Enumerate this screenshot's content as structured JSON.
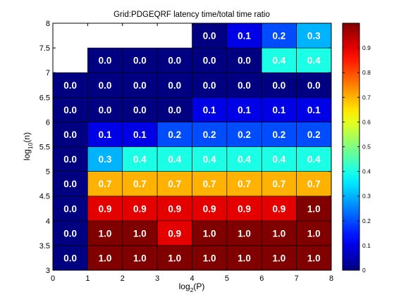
{
  "chart_data": {
    "type": "heatmap",
    "title": "Grid:PDGEQRF latency time/total time ratio",
    "xlabel": {
      "base": "log",
      "sub": "2",
      "rest": "(P)"
    },
    "ylabel": {
      "base": "log",
      "sub": "10",
      "rest": "(n)"
    },
    "xlim": [
      0,
      8
    ],
    "ylim": [
      3,
      8
    ],
    "x_ticks": [
      "0",
      "1",
      "2",
      "3",
      "4",
      "5",
      "6",
      "7",
      "8"
    ],
    "y_ticks": [
      "3",
      "3.5",
      "4",
      "4.5",
      "5",
      "5.5",
      "6",
      "6.5",
      "7",
      "7.5",
      "8"
    ],
    "x_centers": [
      0.5,
      1.5,
      2.5,
      3.5,
      4.5,
      5.5,
      6.5,
      7.5
    ],
    "y_centers": [
      3.25,
      3.75,
      4.25,
      4.75,
      5.25,
      5.75,
      6.25,
      6.75,
      7.25,
      7.75
    ],
    "values": [
      [
        0.0,
        1.0,
        1.0,
        1.0,
        1.0,
        1.0,
        1.0,
        1.0
      ],
      [
        0.0,
        1.0,
        1.0,
        0.9,
        1.0,
        1.0,
        1.0,
        1.0
      ],
      [
        0.0,
        0.9,
        0.9,
        0.9,
        0.9,
        0.9,
        0.9,
        1.0
      ],
      [
        0.0,
        0.7,
        0.7,
        0.7,
        0.7,
        0.7,
        0.7,
        0.7
      ],
      [
        0.0,
        0.3,
        0.4,
        0.4,
        0.4,
        0.4,
        0.4,
        0.4
      ],
      [
        0.0,
        0.1,
        0.1,
        0.2,
        0.2,
        0.2,
        0.2,
        0.2
      ],
      [
        0.0,
        0.0,
        0.0,
        0.0,
        0.1,
        0.1,
        0.1,
        0.1
      ],
      [
        0.0,
        0.0,
        0.0,
        0.0,
        0.0,
        0.0,
        0.0,
        0.0
      ],
      [
        null,
        0.0,
        0.0,
        0.0,
        0.0,
        0.0,
        0.4,
        0.4
      ],
      [
        null,
        null,
        null,
        null,
        0.0,
        0.1,
        0.2,
        0.3
      ]
    ],
    "colorbar": {
      "colormap": "jet",
      "range": [
        0,
        1
      ],
      "ticks": [
        "0",
        "0.1",
        "0.2",
        "0.3",
        "0.4",
        "0.5",
        "0.6",
        "0.7",
        "0.8",
        "0.9"
      ]
    },
    "grid": false
  }
}
